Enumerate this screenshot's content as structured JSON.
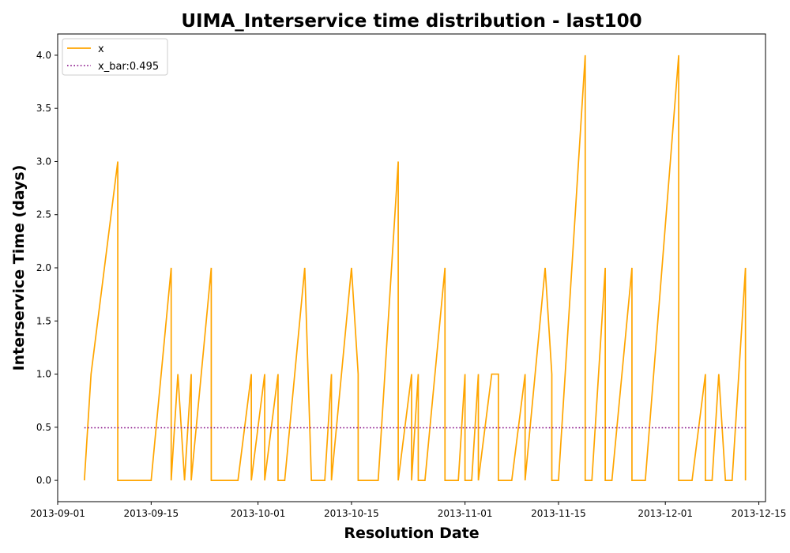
{
  "chart_data": {
    "type": "line",
    "title": "UIMA_Interservice time distribution - last100",
    "xlabel": "Resolution Date",
    "ylabel": "Interservice Time (days)",
    "xlim": [
      "2013-09-01",
      "2013-12-16"
    ],
    "ylim": [
      -0.2,
      4.2
    ],
    "x_ticks": [
      "2013-09-01",
      "2013-09-15",
      "2013-10-01",
      "2013-10-15",
      "2013-11-01",
      "2013-11-15",
      "2013-12-01",
      "2013-12-15"
    ],
    "y_ticks": [
      "0.0",
      "0.5",
      "1.0",
      "1.5",
      "2.0",
      "2.5",
      "3.0",
      "3.5",
      "4.0"
    ],
    "legend_position": "top-left",
    "grid": false,
    "series": [
      {
        "name": "x",
        "color": "#FFA500",
        "style": "solid",
        "points": [
          [
            "2013-09-05",
            0
          ],
          [
            "2013-09-06",
            1
          ],
          [
            "2013-09-10",
            3
          ],
          [
            "2013-09-10",
            0
          ],
          [
            "2013-09-15",
            0
          ],
          [
            "2013-09-18",
            2
          ],
          [
            "2013-09-18",
            0
          ],
          [
            "2013-09-19",
            1
          ],
          [
            "2013-09-20",
            0
          ],
          [
            "2013-09-21",
            1
          ],
          [
            "2013-09-21",
            0
          ],
          [
            "2013-09-24",
            2
          ],
          [
            "2013-09-24",
            0
          ],
          [
            "2013-09-28",
            0
          ],
          [
            "2013-09-30",
            1
          ],
          [
            "2013-09-30",
            0
          ],
          [
            "2013-10-02",
            1
          ],
          [
            "2013-10-02",
            0
          ],
          [
            "2013-10-04",
            1
          ],
          [
            "2013-10-04",
            0
          ],
          [
            "2013-10-05",
            0
          ],
          [
            "2013-10-08",
            2
          ],
          [
            "2013-10-09",
            0
          ],
          [
            "2013-10-11",
            0
          ],
          [
            "2013-10-12",
            1
          ],
          [
            "2013-10-12",
            0
          ],
          [
            "2013-10-15",
            2
          ],
          [
            "2013-10-16",
            1
          ],
          [
            "2013-10-16",
            0
          ],
          [
            "2013-10-19",
            0
          ],
          [
            "2013-10-22",
            3
          ],
          [
            "2013-10-22",
            0
          ],
          [
            "2013-10-24",
            1
          ],
          [
            "2013-10-24",
            0
          ],
          [
            "2013-10-25",
            1
          ],
          [
            "2013-10-25",
            0
          ],
          [
            "2013-10-26",
            0
          ],
          [
            "2013-10-29",
            2
          ],
          [
            "2013-10-29",
            0
          ],
          [
            "2013-10-31",
            0
          ],
          [
            "2013-11-01",
            1
          ],
          [
            "2013-11-01",
            0
          ],
          [
            "2013-11-02",
            0
          ],
          [
            "2013-11-03",
            1
          ],
          [
            "2013-11-03",
            0
          ],
          [
            "2013-11-05",
            1
          ],
          [
            "2013-11-06",
            1
          ],
          [
            "2013-11-06",
            0
          ],
          [
            "2013-11-08",
            0
          ],
          [
            "2013-11-10",
            1
          ],
          [
            "2013-11-10",
            0
          ],
          [
            "2013-11-13",
            2
          ],
          [
            "2013-11-14",
            1
          ],
          [
            "2013-11-14",
            0
          ],
          [
            "2013-11-15",
            0
          ],
          [
            "2013-11-19",
            4
          ],
          [
            "2013-11-19",
            0
          ],
          [
            "2013-11-20",
            0
          ],
          [
            "2013-11-22",
            2
          ],
          [
            "2013-11-22",
            0
          ],
          [
            "2013-11-23",
            0
          ],
          [
            "2013-11-26",
            2
          ],
          [
            "2013-11-26",
            0
          ],
          [
            "2013-11-28",
            0
          ],
          [
            "2013-12-03",
            4
          ],
          [
            "2013-12-03",
            0
          ],
          [
            "2013-12-05",
            0
          ],
          [
            "2013-12-07",
            1
          ],
          [
            "2013-12-07",
            0
          ],
          [
            "2013-12-08",
            0
          ],
          [
            "2013-12-09",
            1
          ],
          [
            "2013-12-10",
            0
          ],
          [
            "2013-12-11",
            0
          ],
          [
            "2013-12-13",
            2
          ],
          [
            "2013-12-13",
            0
          ]
        ]
      },
      {
        "name": "x_bar:0.495",
        "color": "#800080",
        "style": "dotted",
        "points": [
          [
            "2013-09-05",
            0.495
          ],
          [
            "2013-12-13",
            0.495
          ]
        ]
      }
    ]
  }
}
